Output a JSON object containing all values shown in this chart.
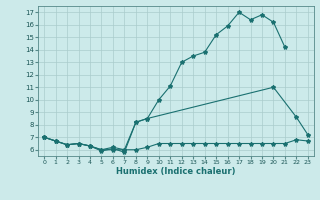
{
  "xlabel": "Humidex (Indice chaleur)",
  "bg_color": "#cceaea",
  "grid_color": "#aacccc",
  "line_color": "#1a7070",
  "xlim": [
    -0.5,
    23.5
  ],
  "ylim": [
    5.5,
    17.5
  ],
  "xticks": [
    0,
    1,
    2,
    3,
    4,
    5,
    6,
    7,
    8,
    9,
    10,
    11,
    12,
    13,
    14,
    15,
    16,
    17,
    18,
    19,
    20,
    21,
    22,
    23
  ],
  "yticks": [
    6,
    7,
    8,
    9,
    10,
    11,
    12,
    13,
    14,
    15,
    16,
    17
  ],
  "line1_x": [
    0,
    1,
    2,
    3,
    4,
    5,
    6,
    7,
    8,
    9,
    10,
    11,
    12,
    13,
    14,
    15,
    16,
    17,
    18,
    19,
    20,
    21
  ],
  "line1_y": [
    7.0,
    6.7,
    6.4,
    6.5,
    6.3,
    5.9,
    6.1,
    5.8,
    8.2,
    8.5,
    10.0,
    11.1,
    13.0,
    13.5,
    13.8,
    15.2,
    15.9,
    17.0,
    16.4,
    16.8,
    16.2,
    14.2
  ],
  "line2_x": [
    0,
    1,
    2,
    3,
    4,
    5,
    6,
    7,
    8,
    9,
    20,
    22,
    23
  ],
  "line2_y": [
    7.0,
    6.7,
    6.4,
    6.5,
    6.3,
    6.0,
    6.2,
    6.0,
    8.2,
    8.5,
    11.0,
    8.6,
    7.2
  ],
  "line3_x": [
    0,
    1,
    2,
    3,
    4,
    5,
    6,
    7,
    8,
    9,
    10,
    11,
    12,
    13,
    14,
    15,
    16,
    17,
    18,
    19,
    20,
    21,
    22,
    23
  ],
  "line3_y": [
    7.0,
    6.7,
    6.4,
    6.5,
    6.3,
    6.0,
    6.0,
    6.0,
    6.0,
    6.2,
    6.5,
    6.5,
    6.5,
    6.5,
    6.5,
    6.5,
    6.5,
    6.5,
    6.5,
    6.5,
    6.5,
    6.5,
    6.8,
    6.7
  ]
}
